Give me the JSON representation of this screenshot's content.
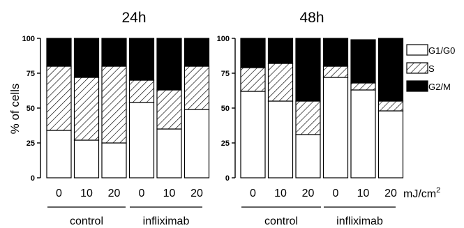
{
  "ylabel": "% of cells",
  "unit_label": "mJ/cm",
  "unit_sup": "2",
  "legend": [
    {
      "key": "g1g0",
      "label": "G1/G0",
      "fill": "white"
    },
    {
      "key": "s",
      "label": "S",
      "fill": "hatch"
    },
    {
      "key": "g2m",
      "label": "G2/M",
      "fill": "black"
    }
  ],
  "colors": {
    "g1g0": "#ffffff",
    "s_hatch": "#000000",
    "g2m": "#000000",
    "axis": "#000000"
  },
  "chart_data": [
    {
      "type": "bar",
      "stacked": true,
      "title": "24h",
      "ylabel": "% of cells",
      "ylim": [
        0,
        100
      ],
      "yticks": [
        "0",
        "25",
        "50",
        "75",
        "100"
      ],
      "categories": [
        "0",
        "10",
        "20",
        "0",
        "10",
        "20"
      ],
      "groups": [
        {
          "label": "control",
          "span": [
            0,
            2
          ]
        },
        {
          "label": "infliximab",
          "span": [
            3,
            5
          ]
        }
      ],
      "series": [
        {
          "name": "G1/G0",
          "values": [
            34,
            27,
            25,
            54,
            35,
            49
          ]
        },
        {
          "name": "S",
          "values": [
            46,
            45,
            55,
            16,
            28,
            31
          ]
        },
        {
          "name": "G2/M",
          "values": [
            20,
            28,
            20,
            30,
            37,
            20
          ]
        }
      ]
    },
    {
      "type": "bar",
      "stacked": true,
      "title": "48h",
      "ylim": [
        0,
        100
      ],
      "yticks": [
        "0",
        "25",
        "50",
        "75",
        "100"
      ],
      "categories": [
        "0",
        "10",
        "20",
        "0",
        "10",
        "20"
      ],
      "groups": [
        {
          "label": "control",
          "span": [
            0,
            2
          ]
        },
        {
          "label": "infliximab",
          "span": [
            3,
            5
          ]
        }
      ],
      "series": [
        {
          "name": "G1/G0",
          "values": [
            62,
            55,
            31,
            72,
            63,
            48
          ]
        },
        {
          "name": "S",
          "values": [
            17,
            27,
            24,
            8,
            5,
            7
          ]
        },
        {
          "name": "G2/M",
          "values": [
            21,
            18,
            45,
            20,
            31,
            45
          ]
        }
      ]
    }
  ]
}
